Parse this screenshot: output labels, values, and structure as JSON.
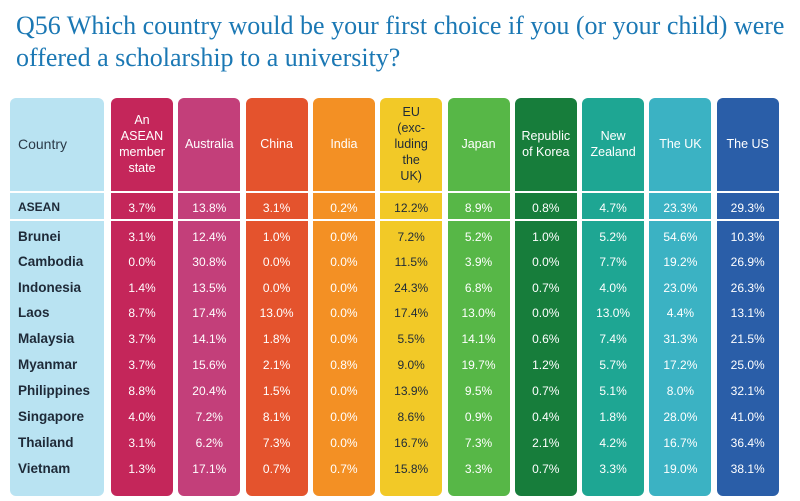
{
  "title": "Q56 Which country would be your first choice if you (or your child) were offered a scholarship to a university?",
  "chart_data": {
    "type": "table",
    "title": "Q56 Which country would be your first choice if you (or your child) were offered a scholarship to a university?",
    "row_header": "Country",
    "columns": [
      {
        "label": "An ASEAN member state",
        "color": "#c4265a"
      },
      {
        "label": "Australia",
        "color": "#c33f7a"
      },
      {
        "label": "China",
        "color": "#e4532d"
      },
      {
        "label": "India",
        "color": "#f39024"
      },
      {
        "label": "EU (excluding the UK)",
        "color": "#f2c927"
      },
      {
        "label": "Japan",
        "color": "#57b747"
      },
      {
        "label": "Republic of Korea",
        "color": "#177d3b"
      },
      {
        "label": "New Zealand",
        "color": "#1ea693"
      },
      {
        "label": "The UK",
        "color": "#3bb2c3"
      },
      {
        "label": "The US",
        "color": "#2a5ea8"
      }
    ],
    "header_lines": [
      [
        "An",
        "ASEAN",
        "member",
        "state"
      ],
      [
        "Australia"
      ],
      [
        "China"
      ],
      [
        "India"
      ],
      [
        "EU",
        "(exc-",
        "luding",
        "the",
        "UK)"
      ],
      [
        "Japan"
      ],
      [
        "Republic",
        "of Korea"
      ],
      [
        "New",
        "Zealand"
      ],
      [
        "The UK"
      ],
      [
        "The US"
      ]
    ],
    "rows": [
      {
        "label": "ASEAN",
        "values": [
          "3.7%",
          "13.8%",
          "3.1%",
          "0.2%",
          "12.2%",
          "8.9%",
          "0.8%",
          "4.7%",
          "23.3%",
          "29.3%"
        ]
      },
      {
        "label": "Brunei",
        "values": [
          "3.1%",
          "12.4%",
          "1.0%",
          "0.0%",
          "7.2%",
          "5.2%",
          "1.0%",
          "5.2%",
          "54.6%",
          "10.3%"
        ]
      },
      {
        "label": "Cambodia",
        "values": [
          "0.0%",
          "30.8%",
          "0.0%",
          "0.0%",
          "11.5%",
          "3.9%",
          "0.0%",
          "7.7%",
          "19.2%",
          "26.9%"
        ]
      },
      {
        "label": "Indonesia",
        "values": [
          "1.4%",
          "13.5%",
          "0.0%",
          "0.0%",
          "24.3%",
          "6.8%",
          "0.7%",
          "4.0%",
          "23.0%",
          "26.3%"
        ]
      },
      {
        "label": "Laos",
        "values": [
          "8.7%",
          "17.4%",
          "13.0%",
          "0.0%",
          "17.4%",
          "13.0%",
          "0.0%",
          "13.0%",
          "4.4%",
          "13.1%"
        ]
      },
      {
        "label": "Malaysia",
        "values": [
          "3.7%",
          "14.1%",
          "1.8%",
          "0.0%",
          "5.5%",
          "14.1%",
          "0.6%",
          "7.4%",
          "31.3%",
          "21.5%"
        ]
      },
      {
        "label": "Myanmar",
        "values": [
          "3.7%",
          "15.6%",
          "2.1%",
          "0.8%",
          "9.0%",
          "19.7%",
          "1.2%",
          "5.7%",
          "17.2%",
          "25.0%"
        ]
      },
      {
        "label": "Philippines",
        "values": [
          "8.8%",
          "20.4%",
          "1.5%",
          "0.0%",
          "13.9%",
          "9.5%",
          "0.7%",
          "5.1%",
          "8.0%",
          "32.1%"
        ]
      },
      {
        "label": "Singapore",
        "values": [
          "4.0%",
          "7.2%",
          "8.1%",
          "0.0%",
          "8.6%",
          "0.9%",
          "0.4%",
          "1.8%",
          "28.0%",
          "41.0%"
        ]
      },
      {
        "label": "Thailand",
        "values": [
          "3.1%",
          "6.2%",
          "7.3%",
          "0.0%",
          "16.7%",
          "7.3%",
          "2.1%",
          "4.2%",
          "16.7%",
          "36.4%"
        ]
      },
      {
        "label": "Vietnam",
        "values": [
          "1.3%",
          "17.1%",
          "0.7%",
          "0.7%",
          "15.8%",
          "3.3%",
          "0.7%",
          "3.3%",
          "19.0%",
          "38.1%"
        ]
      }
    ]
  },
  "row_header_color": "#b9e3f2"
}
